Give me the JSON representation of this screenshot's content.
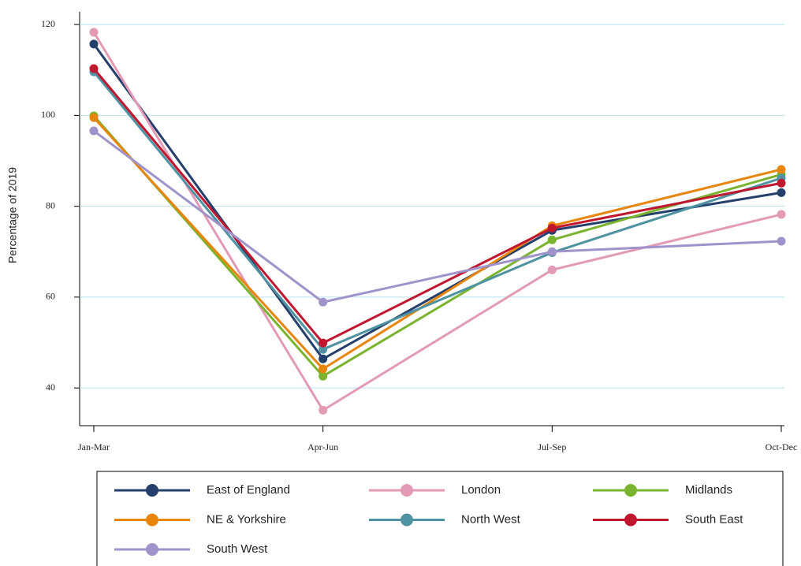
{
  "chart_data": {
    "type": "line",
    "y_label": "Percentage of 2019",
    "categories": [
      "Jan-Mar",
      "Apr-Jun",
      "Jul-Sep",
      "Oct-Dec"
    ],
    "series": [
      {
        "name": "East of England",
        "color": "#243f6b",
        "values": [
          115.7,
          46.4,
          74.7,
          83.0
        ]
      },
      {
        "name": "London",
        "color": "#e39ab5",
        "values": [
          118.3,
          35.1,
          66.0,
          78.2
        ]
      },
      {
        "name": "Midlands",
        "color": "#7ab32e",
        "values": [
          99.9,
          42.6,
          72.6,
          87.0
        ]
      },
      {
        "name": "NE & Yorkshire",
        "color": "#e8850d",
        "values": [
          99.5,
          44.2,
          75.7,
          88.1
        ]
      },
      {
        "name": "North West",
        "color": "#4f93a3",
        "values": [
          109.6,
          48.5,
          69.8,
          86.2
        ]
      },
      {
        "name": "South East",
        "color": "#c0172f",
        "values": [
          110.3,
          49.9,
          75.2,
          85.1
        ]
      },
      {
        "name": "South West",
        "color": "#a092cb",
        "values": [
          96.6,
          58.9,
          70.0,
          72.3
        ]
      }
    ],
    "ylim": [
      31.7,
      122.8
    ],
    "yticks": [
      40,
      60,
      80,
      100,
      120
    ],
    "grid": true,
    "legend": "bottom"
  }
}
